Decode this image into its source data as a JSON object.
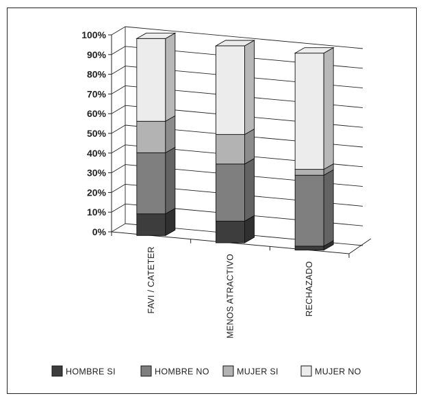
{
  "chart_data": {
    "type": "bar",
    "stacked": true,
    "three_d": true,
    "categories": [
      "FAVI / CATETER",
      "MENOS ATRACTIVO",
      "RECHAZADO"
    ],
    "series": [
      {
        "name": "HOMBRE SI",
        "values": [
          11,
          11,
          2
        ]
      },
      {
        "name": "HOMBRE NO",
        "values": [
          31,
          29,
          36
        ]
      },
      {
        "name": "MUJER SI",
        "values": [
          16,
          15,
          3
        ]
      },
      {
        "name": "MUJER NO",
        "values": [
          42,
          45,
          59
        ]
      }
    ],
    "ylim": [
      0,
      100
    ],
    "yticks": [
      "0%",
      "10%",
      "20%",
      "30%",
      "40%",
      "50%",
      "60%",
      "70%",
      "80%",
      "90%",
      "100%"
    ],
    "grid": true,
    "legend_position": "bottom",
    "colors": {
      "HOMBRE SI": "#3d3d3d",
      "HOMBRE NO": "#7f7f7f",
      "MUJER SI": "#b3b3b3",
      "MUJER NO": "#ececec"
    }
  }
}
